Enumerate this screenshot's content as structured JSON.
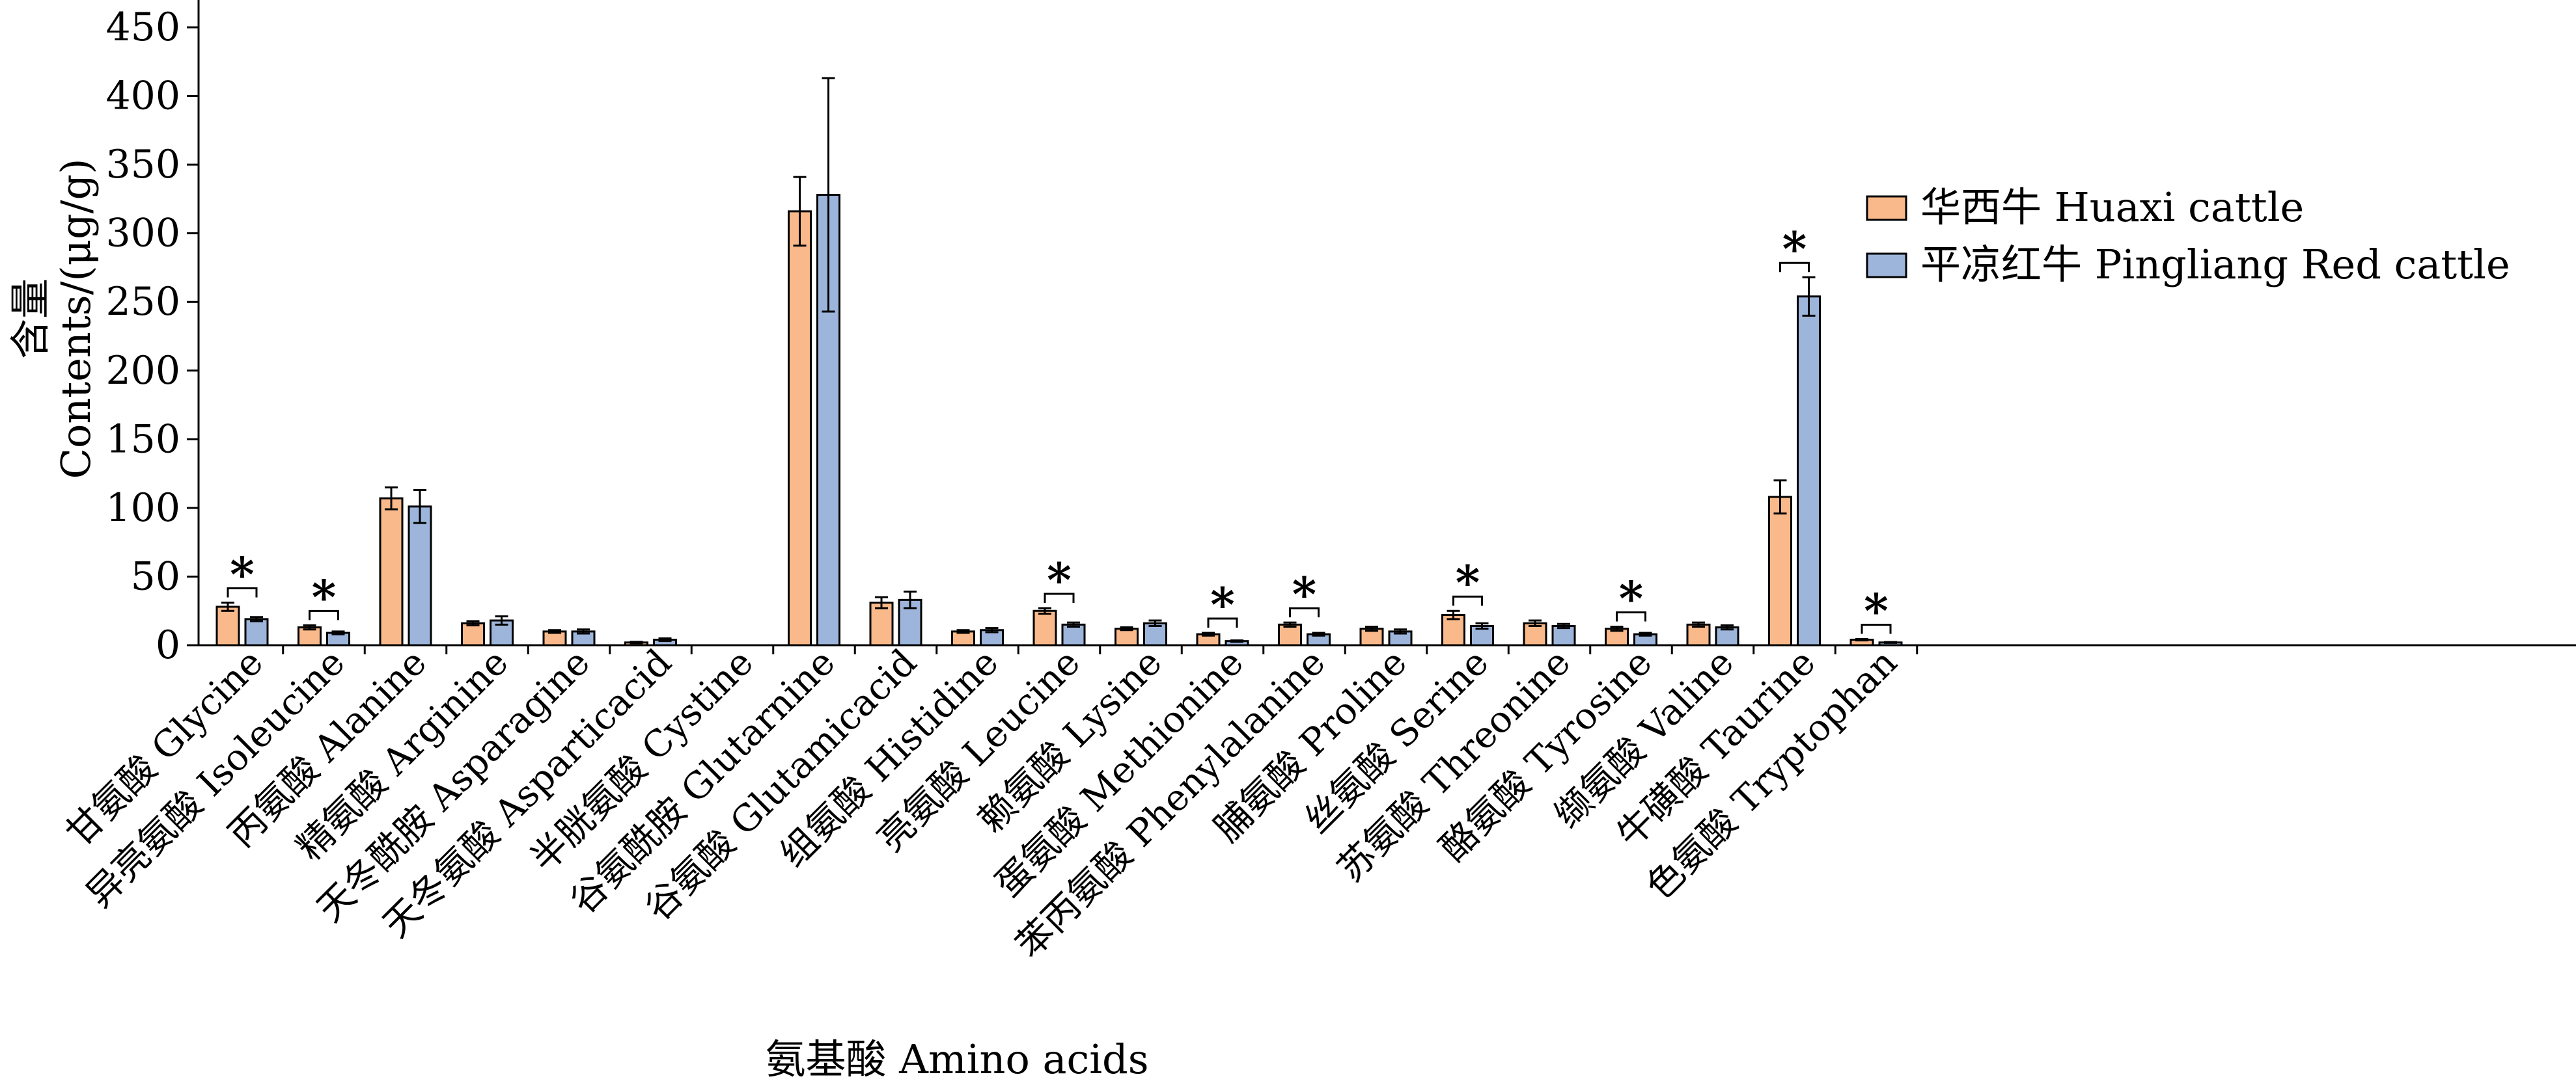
{
  "chart_data": {
    "type": "bar",
    "xlabel": "氨基酸 Amino acids",
    "ylabel_cn": "含量",
    "ylabel_en": "Contents/(μg/g)",
    "ylim": [
      0,
      450
    ],
    "yticks": [
      0,
      50,
      100,
      150,
      200,
      250,
      300,
      350,
      400,
      450
    ],
    "grid": false,
    "legend_position": "top-right",
    "categories": [
      "甘氨酸 Glycine",
      "异亮氨酸 Isoleucine",
      "丙氨酸 Alanine",
      "精氨酸 Arginine",
      "天冬酰胺 Asparagine",
      "天冬氨酸 Asparticacid",
      "半胱氨酸 Cystine",
      "谷氨酰胺 Glutarnine",
      "谷氨酸 Glutamicacid",
      "组氨酸 Histidine",
      "亮氨酸 Leucine",
      "赖氨酸 Lysine",
      "蛋氨酸 Methionine",
      "苯丙氨酸 Phenylalanine",
      "脯氨酸 Proline",
      "丝氨酸 Serine",
      "苏氨酸 Threonine",
      "酪氨酸 Tyrosine",
      "缬氨酸 Valine",
      "牛磺酸 Taurine",
      "色氨酸 Tryptophan"
    ],
    "series": [
      {
        "name": "华西牛 Huaxi cattle",
        "color": "#F9B98A",
        "values": [
          28,
          13,
          107,
          16,
          10,
          2,
          0,
          316,
          31,
          10,
          25,
          12,
          8,
          15,
          12,
          22,
          16,
          12,
          15,
          108,
          4
        ],
        "errors": [
          3,
          1.5,
          8,
          1.5,
          1,
          0.5,
          0,
          25,
          4,
          1,
          2,
          1,
          1,
          1.5,
          1.5,
          3,
          2,
          1.5,
          1.5,
          12,
          0.5
        ]
      },
      {
        "name": "平凉红牛 Pingliang Red cattle",
        "color": "#9DB5DA",
        "values": [
          19,
          9,
          101,
          18,
          10,
          4,
          0,
          328,
          33,
          11,
          15,
          16,
          3,
          8,
          10,
          14,
          14,
          8,
          13,
          254,
          2
        ],
        "errors": [
          1.5,
          1,
          12,
          3,
          1.5,
          1,
          0,
          85,
          6,
          1.5,
          1.5,
          2,
          0.5,
          1,
          1.5,
          2,
          1.5,
          1,
          1.5,
          14,
          0.3
        ]
      }
    ],
    "significance_marker": "*",
    "significant_categories": [
      0,
      1,
      10,
      12,
      13,
      15,
      17,
      19,
      20
    ]
  }
}
